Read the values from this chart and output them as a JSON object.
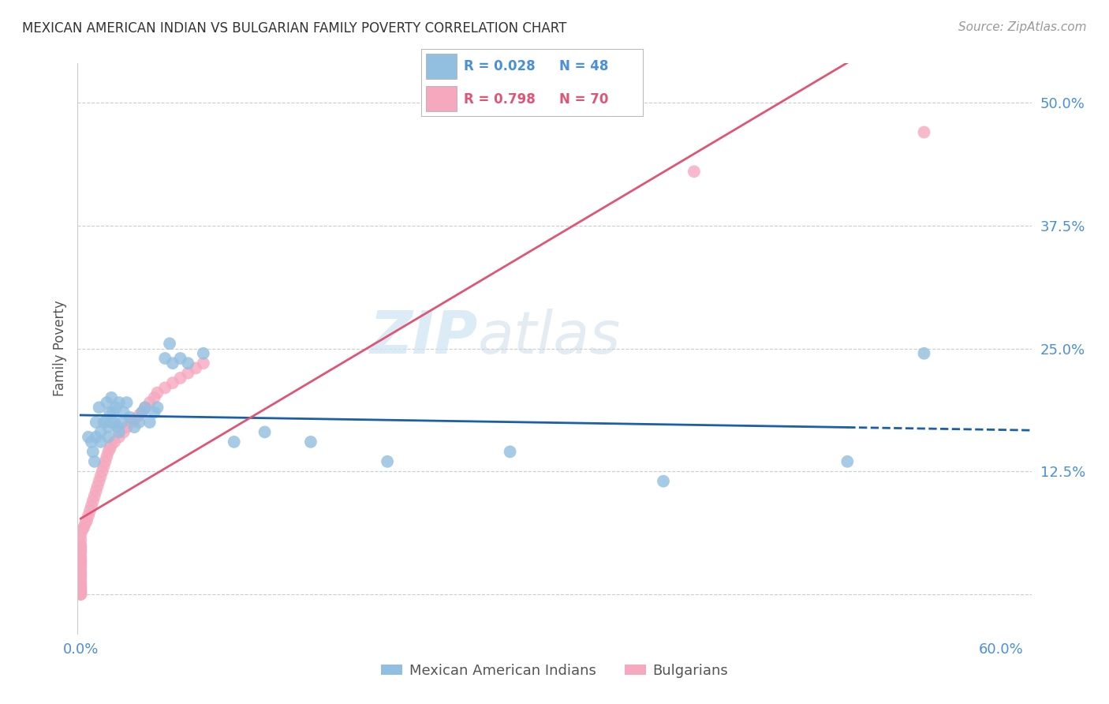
{
  "title": "MEXICAN AMERICAN INDIAN VS BULGARIAN FAMILY POVERTY CORRELATION CHART",
  "source": "Source: ZipAtlas.com",
  "ylabel": "Family Poverty",
  "yticks": [
    0.0,
    0.125,
    0.25,
    0.375,
    0.5
  ],
  "ytick_labels": [
    "",
    "12.5%",
    "25.0%",
    "37.5%",
    "50.0%"
  ],
  "xticks": [
    0.0,
    0.1,
    0.2,
    0.3,
    0.4,
    0.5,
    0.6
  ],
  "xlim": [
    -0.002,
    0.62
  ],
  "ylim": [
    -0.04,
    0.54
  ],
  "watermark_zip": "ZIP",
  "watermark_atlas": "atlas",
  "legend_blue_r": "R = 0.028",
  "legend_blue_n": "N = 48",
  "legend_pink_r": "R = 0.798",
  "legend_pink_n": "N = 70",
  "blue_color": "#92bfdf",
  "pink_color": "#f5a8be",
  "blue_line_color": "#1a5fa8",
  "pink_line_color": "#e05575",
  "background_color": "#ffffff",
  "blue_scatter_x": [
    0.005,
    0.007,
    0.008,
    0.009,
    0.01,
    0.01,
    0.012,
    0.013,
    0.013,
    0.015,
    0.016,
    0.017,
    0.018,
    0.018,
    0.019,
    0.02,
    0.02,
    0.021,
    0.022,
    0.023,
    0.024,
    0.025,
    0.025,
    0.027,
    0.028,
    0.03,
    0.032,
    0.035,
    0.038,
    0.04,
    0.042,
    0.045,
    0.048,
    0.05,
    0.055,
    0.058,
    0.06,
    0.065,
    0.07,
    0.08,
    0.1,
    0.12,
    0.15,
    0.2,
    0.28,
    0.38,
    0.5,
    0.55
  ],
  "blue_scatter_y": [
    0.16,
    0.155,
    0.145,
    0.135,
    0.175,
    0.16,
    0.19,
    0.165,
    0.155,
    0.175,
    0.175,
    0.195,
    0.17,
    0.16,
    0.185,
    0.2,
    0.175,
    0.185,
    0.175,
    0.19,
    0.17,
    0.195,
    0.165,
    0.175,
    0.185,
    0.195,
    0.18,
    0.17,
    0.175,
    0.185,
    0.19,
    0.175,
    0.185,
    0.19,
    0.24,
    0.255,
    0.235,
    0.24,
    0.235,
    0.245,
    0.155,
    0.165,
    0.155,
    0.135,
    0.145,
    0.115,
    0.135,
    0.245
  ],
  "pink_scatter_x": [
    0.0,
    0.0,
    0.0,
    0.0,
    0.0,
    0.0,
    0.0,
    0.0,
    0.0,
    0.0,
    0.0,
    0.0,
    0.0,
    0.0,
    0.0,
    0.0,
    0.0,
    0.0,
    0.0,
    0.0,
    0.0,
    0.0,
    0.0,
    0.0,
    0.0,
    0.0,
    0.0,
    0.0,
    0.0,
    0.0,
    0.001,
    0.002,
    0.003,
    0.004,
    0.005,
    0.006,
    0.007,
    0.008,
    0.009,
    0.01,
    0.011,
    0.012,
    0.013,
    0.014,
    0.015,
    0.016,
    0.017,
    0.018,
    0.019,
    0.02,
    0.022,
    0.025,
    0.028,
    0.03,
    0.033,
    0.035,
    0.038,
    0.04,
    0.042,
    0.045,
    0.048,
    0.05,
    0.055,
    0.06,
    0.065,
    0.07,
    0.075,
    0.08,
    0.4,
    0.55
  ],
  "pink_scatter_y": [
    0.06,
    0.055,
    0.05,
    0.048,
    0.046,
    0.044,
    0.042,
    0.038,
    0.036,
    0.034,
    0.032,
    0.03,
    0.028,
    0.025,
    0.022,
    0.02,
    0.018,
    0.015,
    0.012,
    0.01,
    0.008,
    0.006,
    0.005,
    0.004,
    0.003,
    0.002,
    0.001,
    0.001,
    0.0,
    0.0,
    0.065,
    0.068,
    0.072,
    0.075,
    0.08,
    0.085,
    0.09,
    0.095,
    0.1,
    0.105,
    0.11,
    0.115,
    0.12,
    0.125,
    0.13,
    0.135,
    0.14,
    0.145,
    0.148,
    0.152,
    0.155,
    0.16,
    0.165,
    0.17,
    0.175,
    0.178,
    0.182,
    0.185,
    0.19,
    0.195,
    0.2,
    0.205,
    0.21,
    0.215,
    0.22,
    0.225,
    0.23,
    0.235,
    0.43,
    0.47
  ]
}
